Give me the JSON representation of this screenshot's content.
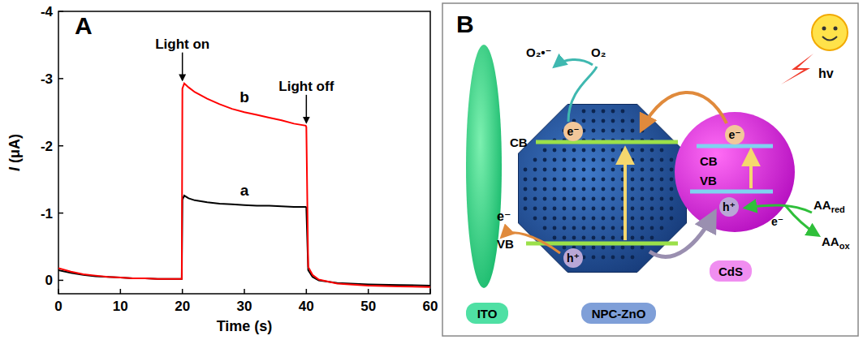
{
  "chart_data": {
    "type": "line",
    "panel_label": "A",
    "xlabel": "Time (s)",
    "ylabel": "I (μA)",
    "x": [
      0,
      2,
      4,
      6,
      8,
      10,
      12,
      14,
      16,
      18,
      19.9,
      20,
      20.3,
      21,
      22,
      24,
      26,
      28,
      30,
      32,
      34,
      36,
      38,
      39.9,
      40,
      40.3,
      41,
      42,
      45,
      50,
      55,
      60
    ],
    "series": [
      {
        "name": "a",
        "color": "#000000",
        "values": [
          -0.15,
          -0.11,
          -0.08,
          -0.06,
          -0.05,
          -0.04,
          -0.03,
          -0.03,
          -0.02,
          -0.02,
          -0.02,
          -1.2,
          -1.26,
          -1.22,
          -1.19,
          -1.16,
          -1.14,
          -1.13,
          -1.12,
          -1.11,
          -1.11,
          -1.1,
          -1.09,
          -1.09,
          -1.08,
          -0.15,
          -0.05,
          0.0,
          0.04,
          0.06,
          0.07,
          0.08
        ]
      },
      {
        "name": "b",
        "color": "#ff0000",
        "values": [
          -0.18,
          -0.13,
          -0.09,
          -0.07,
          -0.05,
          -0.04,
          -0.03,
          -0.03,
          -0.02,
          -0.02,
          -0.02,
          -2.85,
          -2.93,
          -2.87,
          -2.8,
          -2.7,
          -2.62,
          -2.55,
          -2.5,
          -2.46,
          -2.42,
          -2.38,
          -2.33,
          -2.3,
          -2.28,
          -0.2,
          -0.08,
          -0.01,
          0.05,
          0.08,
          0.09,
          0.1
        ]
      }
    ],
    "xlim": [
      0,
      60
    ],
    "xticks": [
      0,
      10,
      20,
      30,
      40,
      50,
      60
    ],
    "ylim": [
      0.2,
      -4
    ],
    "yticks": [
      0,
      -1,
      -2,
      -3,
      -4
    ],
    "annotations": [
      {
        "text": "Light on",
        "x": 20
      },
      {
        "text": "Light off",
        "x": 40
      }
    ],
    "grid": false
  },
  "panel_b": {
    "letter": "B",
    "ito": "ITO",
    "zno": "NPC-ZnO",
    "cds": "CdS",
    "hv": "hv",
    "cb": "CB",
    "vb": "VB",
    "electron": "e⁻",
    "hole": "h⁺",
    "o2": "O₂",
    "superoxide": "O₂•⁻",
    "aa_red": {
      "text": "AA",
      "sub": "red"
    },
    "aa_ox": {
      "text": "AA",
      "sub": "ox"
    }
  }
}
